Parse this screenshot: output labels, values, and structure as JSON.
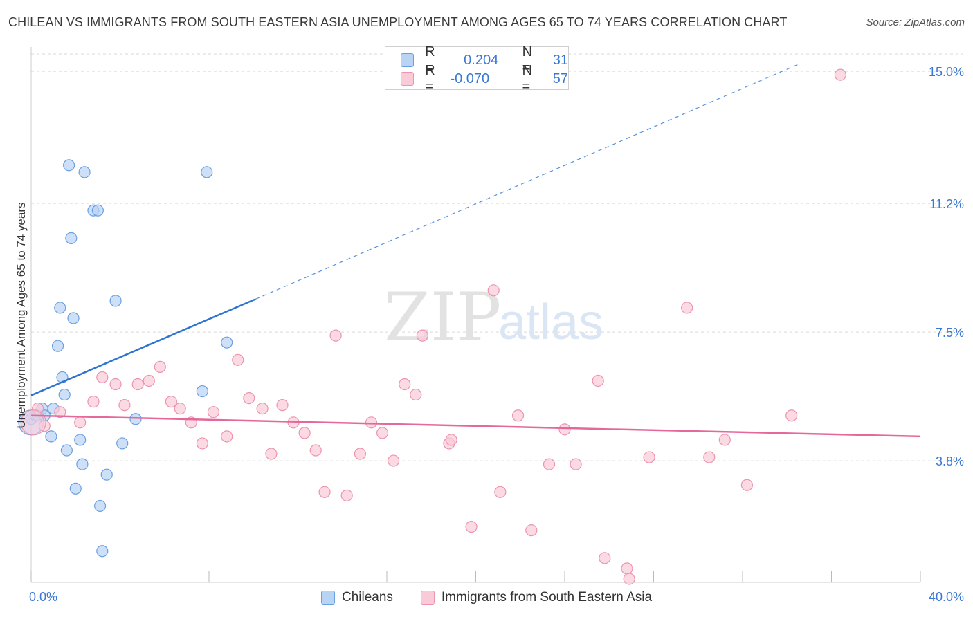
{
  "title": "CHILEAN VS IMMIGRANTS FROM SOUTH EASTERN ASIA UNEMPLOYMENT AMONG AGES 65 TO 74 YEARS CORRELATION CHART",
  "source": "Source: ZipAtlas.com",
  "watermark": {
    "zip": "ZIP",
    "atlas": "atlas"
  },
  "legend_box": {
    "rows": [
      {
        "r_label": "R =",
        "r_value": "0.204",
        "n_label": "N =",
        "n_value": "31"
      },
      {
        "r_label": "R =",
        "r_value": "-0.070",
        "n_label": "N =",
        "n_value": "57"
      }
    ]
  },
  "colors": {
    "blue_fill": "#b9d3f4",
    "blue_stroke": "#6a9fe0",
    "blue_line": "#2d74d2",
    "pink_fill": "#f9cbd8",
    "pink_stroke": "#ec93ad",
    "pink_line": "#e5689a",
    "axis_label": "#3a78d4",
    "grid": "#d9d9d9"
  },
  "chart_data": {
    "type": "scatter",
    "xlabel": "",
    "ylabel": "Unemployment Among Ages 65 to 74 years",
    "x_axis": {
      "min": 0,
      "max": 40,
      "tick_labels": [
        "0.0%",
        "40.0%"
      ],
      "minor_ticks": 10
    },
    "y_axis": {
      "min": 0.3,
      "max": 15.5,
      "ticks": [
        3.8,
        7.5,
        11.2,
        15.0
      ],
      "tick_labels": [
        "3.8%",
        "7.5%",
        "11.2%",
        "15.0%"
      ]
    },
    "grid": true,
    "legend_position": "top-center",
    "series": [
      {
        "name": "Chileans",
        "color": "#6a9fe0",
        "points": [
          [
            0.0,
            5.0
          ],
          [
            0.2,
            5.1
          ],
          [
            0.3,
            5.1
          ],
          [
            0.5,
            5.3
          ],
          [
            0.6,
            5.1
          ],
          [
            0.9,
            4.5
          ],
          [
            1.0,
            5.3
          ],
          [
            1.2,
            7.1
          ],
          [
            1.3,
            8.2
          ],
          [
            1.4,
            6.2
          ],
          [
            1.5,
            5.7
          ],
          [
            1.6,
            4.1
          ],
          [
            1.7,
            12.3
          ],
          [
            1.8,
            10.2
          ],
          [
            1.9,
            7.9
          ],
          [
            2.0,
            3.0
          ],
          [
            2.2,
            4.4
          ],
          [
            2.3,
            3.7
          ],
          [
            2.4,
            12.1
          ],
          [
            2.8,
            11.0
          ],
          [
            3.0,
            11.0
          ],
          [
            3.1,
            2.5
          ],
          [
            3.2,
            1.2
          ],
          [
            3.4,
            3.4
          ],
          [
            3.8,
            8.4
          ],
          [
            4.1,
            4.3
          ],
          [
            4.7,
            5.0
          ],
          [
            7.7,
            5.8
          ],
          [
            7.9,
            12.1
          ],
          [
            8.8,
            7.2
          ],
          [
            0.0,
            4.9
          ]
        ],
        "trendline": {
          "x_start": 0.0,
          "y_start": 5.68,
          "x_solid_end": 10.1,
          "y_solid_end": 8.45,
          "x_dashed_end": 34.5,
          "y_dashed_end": 15.2
        }
      },
      {
        "name": "Immigrants from South Eastern Asia",
        "color": "#ec93ad",
        "points": [
          [
            0.3,
            5.3
          ],
          [
            0.6,
            4.8
          ],
          [
            1.3,
            5.2
          ],
          [
            2.2,
            4.9
          ],
          [
            2.8,
            5.5
          ],
          [
            3.2,
            6.2
          ],
          [
            3.8,
            6.0
          ],
          [
            4.2,
            5.4
          ],
          [
            4.8,
            6.0
          ],
          [
            5.3,
            6.1
          ],
          [
            5.8,
            6.5
          ],
          [
            6.3,
            5.5
          ],
          [
            6.7,
            5.3
          ],
          [
            7.2,
            4.9
          ],
          [
            7.7,
            4.3
          ],
          [
            8.2,
            5.2
          ],
          [
            8.8,
            4.5
          ],
          [
            9.3,
            6.7
          ],
          [
            9.8,
            5.6
          ],
          [
            10.4,
            5.3
          ],
          [
            10.8,
            4.0
          ],
          [
            11.3,
            5.4
          ],
          [
            11.8,
            4.9
          ],
          [
            12.3,
            4.6
          ],
          [
            12.8,
            4.1
          ],
          [
            13.2,
            2.9
          ],
          [
            13.7,
            7.4
          ],
          [
            14.2,
            2.8
          ],
          [
            14.8,
            4.0
          ],
          [
            15.3,
            4.9
          ],
          [
            15.8,
            4.6
          ],
          [
            16.3,
            3.8
          ],
          [
            16.8,
            6.0
          ],
          [
            17.3,
            5.7
          ],
          [
            17.6,
            7.4
          ],
          [
            18.8,
            4.3
          ],
          [
            18.9,
            4.4
          ],
          [
            19.8,
            1.9
          ],
          [
            20.8,
            8.7
          ],
          [
            21.1,
            2.9
          ],
          [
            21.9,
            5.1
          ],
          [
            22.5,
            1.8
          ],
          [
            23.3,
            3.7
          ],
          [
            24.0,
            4.7
          ],
          [
            24.5,
            3.7
          ],
          [
            25.5,
            6.1
          ],
          [
            25.8,
            1.0
          ],
          [
            26.8,
            0.7
          ],
          [
            26.9,
            0.4
          ],
          [
            27.8,
            3.9
          ],
          [
            29.5,
            8.2
          ],
          [
            30.5,
            3.9
          ],
          [
            31.2,
            4.4
          ],
          [
            32.2,
            3.1
          ],
          [
            34.2,
            5.1
          ],
          [
            36.4,
            14.9
          ],
          [
            0.1,
            4.9
          ]
        ],
        "trendline": {
          "x_start": 0.0,
          "y_start": 5.1,
          "x_end": 40.0,
          "y_end": 4.5
        }
      }
    ]
  },
  "bottom_legend": [
    {
      "label": "Chileans"
    },
    {
      "label": "Immigrants from South Eastern Asia"
    }
  ]
}
